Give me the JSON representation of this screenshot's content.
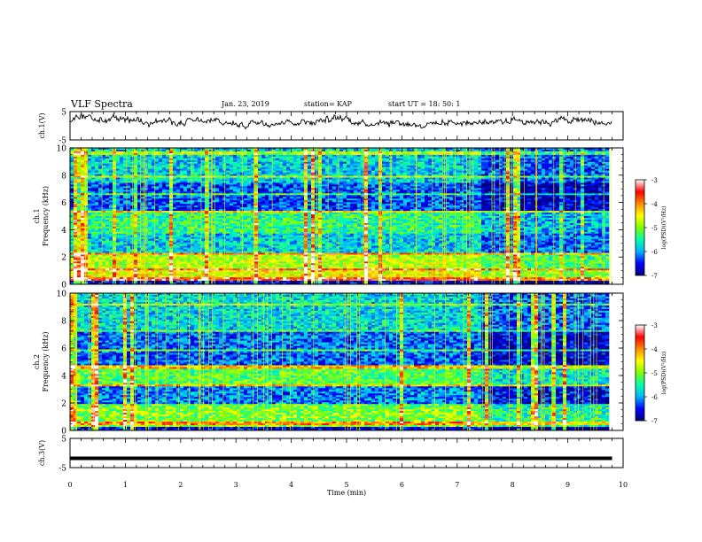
{
  "header": {
    "title": "VLF Spectra",
    "date": "Jan. 23, 2019",
    "station": "station= KAP",
    "start": "start  UT =   18: 50: 1"
  },
  "chart_data": [
    {
      "type": "line",
      "name": "ch1-waveform",
      "ylabel": "ch.1(V)",
      "ylim": [
        -5,
        5
      ],
      "yticks": [
        "5",
        "-5"
      ],
      "xlim": [
        0,
        10
      ],
      "x_end": 9.8
    },
    {
      "type": "heatmap",
      "name": "ch1-spectrogram",
      "ylabel": "ch.1\nFrequency (kHz)",
      "ylim": [
        0,
        10
      ],
      "yticks": [
        "0",
        "2",
        "4",
        "6",
        "8",
        "10"
      ],
      "xlim": [
        0,
        10
      ],
      "data_end_min": 9.8,
      "regime_change_min": 7.4,
      "colorbar": {
        "label": "log(PSD)(V²/Hz)",
        "range": [
          -7,
          -3
        ],
        "ticks": [
          "-3",
          "-4",
          "-5",
          "-6",
          "-7"
        ],
        "colors": [
          "#00007a",
          "#0000ff",
          "#00b4ff",
          "#00ffb0",
          "#7dff00",
          "#ffff00",
          "#ff8c00",
          "#ff0000",
          "#ffffff"
        ]
      }
    },
    {
      "type": "heatmap",
      "name": "ch2-spectrogram",
      "ylabel": "ch.2\nFrequency (kHz)",
      "ylim": [
        0,
        10
      ],
      "yticks": [
        "0",
        "2",
        "4",
        "6",
        "8",
        "10"
      ],
      "xlim": [
        0,
        10
      ],
      "data_end_min": 9.8,
      "regime_change_min": 7.4,
      "colorbar": {
        "label": "log(PSD)(V²/Hz)",
        "range": [
          -7,
          -3
        ],
        "ticks": [
          "-3",
          "-4",
          "-5",
          "-6",
          "-7"
        ],
        "colors": [
          "#00007a",
          "#0000ff",
          "#00b4ff",
          "#00ffb0",
          "#7dff00",
          "#ffff00",
          "#ff8c00",
          "#ff0000",
          "#ffffff"
        ]
      }
    },
    {
      "type": "line",
      "name": "ch3-waveform",
      "ylabel": "ch.3(V)",
      "ylim": [
        -5,
        5
      ],
      "yticks": [
        "5",
        "-5"
      ],
      "xlim": [
        0,
        10
      ],
      "x_end": 9.8,
      "level": -1.8
    }
  ],
  "xaxis": {
    "label": "Time (min)",
    "ticks": [
      "0",
      "1",
      "2",
      "3",
      "4",
      "5",
      "6",
      "7",
      "8",
      "9",
      "10"
    ]
  }
}
